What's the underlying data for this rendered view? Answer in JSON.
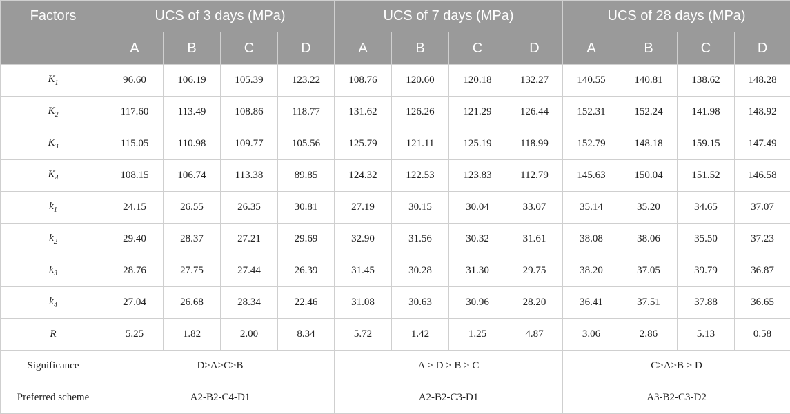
{
  "header": {
    "factors": "Factors",
    "groups": [
      "UCS of 3 days (MPa)",
      "UCS of 7 days (MPa)",
      "UCS of 28 days (MPa)"
    ],
    "sub": [
      "A",
      "B",
      "C",
      "D",
      "A",
      "B",
      "C",
      "D",
      "A",
      "B",
      "C",
      "D"
    ]
  },
  "rows": [
    {
      "letter": "K",
      "sub": "1",
      "values": [
        "96.60",
        "106.19",
        "105.39",
        "123.22",
        "108.76",
        "120.60",
        "120.18",
        "132.27",
        "140.55",
        "140.81",
        "138.62",
        "148.28"
      ]
    },
    {
      "letter": "K",
      "sub": "2",
      "values": [
        "117.60",
        "113.49",
        "108.86",
        "118.77",
        "131.62",
        "126.26",
        "121.29",
        "126.44",
        "152.31",
        "152.24",
        "141.98",
        "148.92"
      ]
    },
    {
      "letter": "K",
      "sub": "3",
      "values": [
        "115.05",
        "110.98",
        "109.77",
        "105.56",
        "125.79",
        "121.11",
        "125.19",
        "118.99",
        "152.79",
        "148.18",
        "159.15",
        "147.49"
      ]
    },
    {
      "letter": "K",
      "sub": "4",
      "values": [
        "108.15",
        "106.74",
        "113.38",
        "89.85",
        "124.32",
        "122.53",
        "123.83",
        "112.79",
        "145.63",
        "150.04",
        "151.52",
        "146.58"
      ]
    },
    {
      "letter": "k",
      "sub": "1",
      "values": [
        "24.15",
        "26.55",
        "26.35",
        "30.81",
        "27.19",
        "30.15",
        "30.04",
        "33.07",
        "35.14",
        "35.20",
        "34.65",
        "37.07"
      ]
    },
    {
      "letter": "k",
      "sub": "2",
      "values": [
        "29.40",
        "28.37",
        "27.21",
        "29.69",
        "32.90",
        "31.56",
        "30.32",
        "31.61",
        "38.08",
        "38.06",
        "35.50",
        "37.23"
      ]
    },
    {
      "letter": "k",
      "sub": "3",
      "values": [
        "28.76",
        "27.75",
        "27.44",
        "26.39",
        "31.45",
        "30.28",
        "31.30",
        "29.75",
        "38.20",
        "37.05",
        "39.79",
        "36.87"
      ]
    },
    {
      "letter": "k",
      "sub": "4",
      "values": [
        "27.04",
        "26.68",
        "28.34",
        "22.46",
        "31.08",
        "30.63",
        "30.96",
        "28.20",
        "36.41",
        "37.51",
        "37.88",
        "36.65"
      ]
    },
    {
      "letter": "R",
      "sub": "",
      "values": [
        "5.25",
        "1.82",
        "2.00",
        "8.34",
        "5.72",
        "1.42",
        "1.25",
        "4.87",
        "3.06",
        "2.86",
        "5.13",
        "0.58"
      ]
    }
  ],
  "significance": {
    "label": "Significance",
    "values": [
      "D>A>C>B",
      "A > D > B > C",
      "C>A>B > D"
    ]
  },
  "preferred": {
    "label": "Preferred scheme",
    "values": [
      "A2-B2-C4-D1",
      "A2-B2-C3-D1",
      "A3-B2-C3-D2"
    ]
  }
}
